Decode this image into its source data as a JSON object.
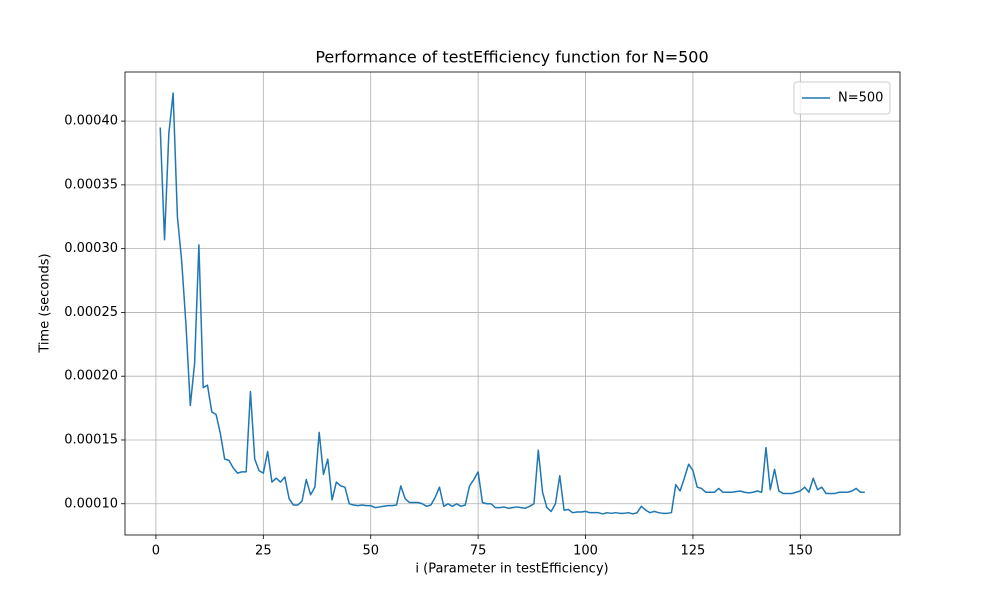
{
  "chart_data": {
    "type": "line",
    "title": "Performance of testEfficiency function for N=500",
    "xlabel": "i (Parameter in testEfficiency)",
    "ylabel": "Time (seconds)",
    "x": [
      1,
      2,
      3,
      4,
      5,
      6,
      7,
      8,
      9,
      10,
      11,
      12,
      13,
      14,
      15,
      16,
      17,
      18,
      19,
      20,
      21,
      22,
      23,
      24,
      25,
      26,
      27,
      28,
      29,
      30,
      31,
      32,
      33,
      34,
      35,
      36,
      37,
      38,
      39,
      40,
      41,
      42,
      43,
      44,
      45,
      46,
      47,
      48,
      49,
      50,
      51,
      52,
      53,
      54,
      55,
      56,
      57,
      58,
      59,
      60,
      61,
      62,
      63,
      64,
      65,
      66,
      67,
      68,
      69,
      70,
      71,
      72,
      73,
      74,
      75,
      76,
      77,
      78,
      79,
      80,
      81,
      82,
      83,
      84,
      85,
      86,
      87,
      88,
      89,
      90,
      91,
      92,
      93,
      94,
      95,
      96,
      97,
      98,
      99,
      100,
      101,
      102,
      103,
      104,
      105,
      106,
      107,
      108,
      109,
      110,
      111,
      112,
      113,
      114,
      115,
      116,
      117,
      118,
      119,
      120,
      121,
      122,
      123,
      124,
      125,
      126,
      127,
      128,
      129,
      130,
      131,
      132,
      133,
      134,
      135,
      136,
      137,
      138,
      139,
      140,
      141,
      142,
      143,
      144,
      145,
      146,
      147,
      148,
      149,
      150,
      151,
      152,
      153,
      154,
      155,
      156,
      157,
      158,
      159,
      160,
      161,
      162,
      163,
      164,
      165
    ],
    "series": [
      {
        "name": "N=500",
        "color": "#1f77b4",
        "values": [
          0.000395,
          0.000307,
          0.00039,
          0.000422,
          0.000325,
          0.00029,
          0.00024,
          0.000177,
          0.00021,
          0.000303,
          0.000191,
          0.000193,
          0.000172,
          0.00017,
          0.000155,
          0.000135,
          0.000134,
          0.000128,
          0.000124,
          0.000125,
          0.000125,
          0.000188,
          0.000135,
          0.000126,
          0.000124,
          0.000141,
          0.000117,
          0.00012,
          0.000117,
          0.000121,
          0.000104,
          9.9e-05,
          9.9e-05,
          0.000102,
          0.000119,
          0.000107,
          0.000113,
          0.000156,
          0.000123,
          0.000135,
          0.000103,
          0.000117,
          0.000114,
          0.000113,
          0.0001,
          9.9e-05,
          9.85e-05,
          9.9e-05,
          9.85e-05,
          9.85e-05,
          9.7e-05,
          9.75e-05,
          9.8e-05,
          9.85e-05,
          9.85e-05,
          9.9e-05,
          0.000114,
          0.000104,
          0.000101,
          0.000101,
          0.000101,
          0.0001,
          9.8e-05,
          9.9e-05,
          0.000105,
          0.000113,
          9.8e-05,
          0.0001,
          9.8e-05,
          0.0001,
          9.8e-05,
          9.9e-05,
          0.000114,
          0.000119,
          0.000125,
          0.000101,
          0.0001,
          0.0001,
          9.7e-05,
          9.7e-05,
          9.75e-05,
          9.65e-05,
          9.7e-05,
          9.75e-05,
          9.7e-05,
          9.65e-05,
          9.8e-05,
          0.0001,
          0.000142,
          0.000109,
          9.7e-05,
          9.4e-05,
          0.0001,
          0.000122,
          9.5e-05,
          9.55e-05,
          9.3e-05,
          9.35e-05,
          9.35e-05,
          9.4e-05,
          9.3e-05,
          9.3e-05,
          9.3e-05,
          9.2e-05,
          9.3e-05,
          9.25e-05,
          9.3e-05,
          9.25e-05,
          9.25e-05,
          9.3e-05,
          9.2e-05,
          9.3e-05,
          9.8e-05,
          9.5e-05,
          9.3e-05,
          9.4e-05,
          9.3e-05,
          9.25e-05,
          9.25e-05,
          9.3e-05,
          0.000115,
          0.00011,
          0.00012,
          0.000131,
          0.000126,
          0.000113,
          0.000112,
          0.000109,
          0.000109,
          0.000109,
          0.000112,
          0.000109,
          0.000109,
          0.000109,
          0.0001095,
          0.00011,
          0.000109,
          0.0001085,
          0.000109,
          0.00011,
          0.000109,
          0.000144,
          0.000111,
          0.000127,
          0.00011,
          0.000108,
          0.000108,
          0.000108,
          0.000109,
          0.00011,
          0.000113,
          0.000109,
          0.00012,
          0.000111,
          0.000113,
          0.000108,
          0.000108,
          0.000108,
          0.000109,
          0.000109,
          0.000109,
          0.00011,
          0.000112,
          0.000109,
          0.000109
        ]
      }
    ],
    "xlim": [
      -7.2,
      173.2
    ],
    "xticks": [
      0,
      25,
      50,
      75,
      100,
      125,
      150
    ],
    "ylim": [
      7.55e-05,
      0.0004385
    ],
    "yticks": [
      {
        "value": 0.0001,
        "label": "0.00010"
      },
      {
        "value": 0.00015,
        "label": "0.00015"
      },
      {
        "value": 0.0002,
        "label": "0.00020"
      },
      {
        "value": 0.00025,
        "label": "0.00025"
      },
      {
        "value": 0.0003,
        "label": "0.00030"
      },
      {
        "value": 0.00035,
        "label": "0.00035"
      },
      {
        "value": 0.0004,
        "label": "0.00040"
      }
    ],
    "grid": true,
    "legend": "upper right"
  }
}
